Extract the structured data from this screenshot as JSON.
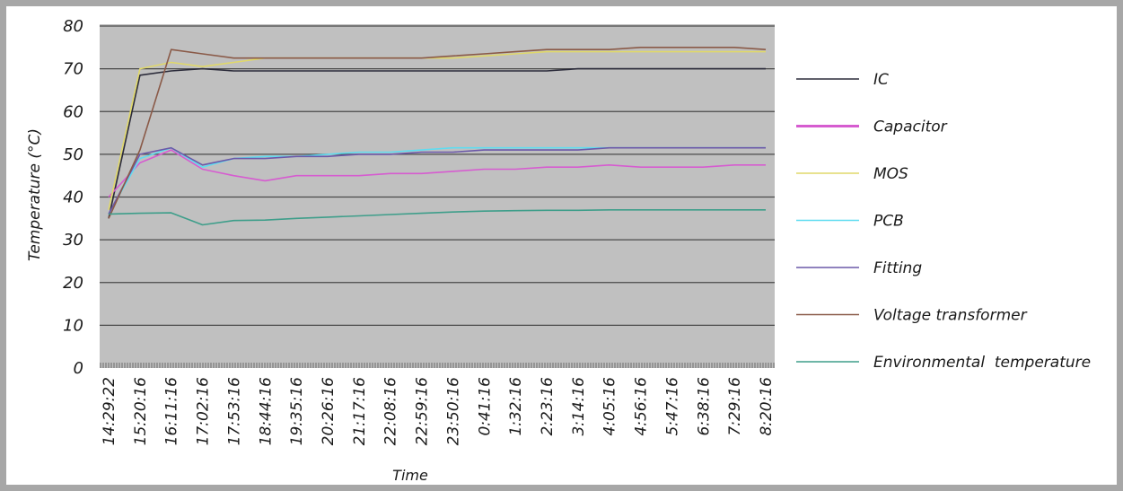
{
  "chart_data": {
    "type": "line",
    "title": "",
    "xlabel": "Time",
    "ylabel": "Temperature (°C)",
    "ylim": [
      0,
      80
    ],
    "yticks": [
      0,
      10,
      20,
      30,
      40,
      50,
      60,
      70,
      80
    ],
    "grid": true,
    "legend_position": "right",
    "x": [
      "14:29:22",
      "15:20:16",
      "16:11:16",
      "17:02:16",
      "17:53:16",
      "18:44:16",
      "19:35:16",
      "20:26:16",
      "21:17:16",
      "22:08:16",
      "22:59:16",
      "23:50:16",
      "0:41:16",
      "1:32:16",
      "2:23:16",
      "3:14:16",
      "4:05:16",
      "4:56:16",
      "5:47:16",
      "6:38:16",
      "7:29:16",
      "8:20:16"
    ],
    "series": [
      {
        "name": "IC",
        "color": "#2b2b3a",
        "values": [
          35,
          68.5,
          69.5,
          70,
          69.5,
          69.5,
          69.5,
          69.5,
          69.5,
          69.5,
          69.5,
          69.5,
          69.5,
          69.5,
          69.5,
          70,
          70,
          70,
          70,
          70,
          70,
          70
        ]
      },
      {
        "name": "Capacitor",
        "color": "#d65cd0",
        "values": [
          40,
          48,
          51,
          46.5,
          45,
          43.8,
          45,
          45,
          45,
          45.5,
          45.5,
          46,
          46.5,
          46.5,
          47,
          47,
          47.5,
          47,
          47,
          47,
          47.5,
          47.5
        ]
      },
      {
        "name": "MOS",
        "color": "#e0d86a",
        "values": [
          37,
          70,
          71.5,
          70.5,
          71.5,
          72.5,
          72.5,
          72.5,
          72.5,
          72.5,
          72.5,
          72.5,
          73,
          73.5,
          74,
          74,
          74,
          74,
          74,
          74,
          74,
          74
        ]
      },
      {
        "name": "PCB",
        "color": "#5fdcf0",
        "values": [
          36,
          49,
          51.5,
          47,
          49,
          49.5,
          49.5,
          50,
          50.5,
          50.5,
          51,
          51.5,
          51.5,
          51.5,
          51.5,
          51.5,
          51.5,
          51.5,
          51.5,
          51.5,
          51.5,
          51.5
        ]
      },
      {
        "name": "Fitting",
        "color": "#6c58a8",
        "values": [
          36,
          50,
          51.5,
          47.5,
          49,
          49,
          49.5,
          49.5,
          50,
          50,
          50.5,
          50.5,
          51,
          51,
          51,
          51,
          51.5,
          51.5,
          51.5,
          51.5,
          51.5,
          51.5
        ]
      },
      {
        "name": "Voltage transformer",
        "color": "#8a5a48",
        "values": [
          35,
          51,
          74.5,
          73.5,
          72.5,
          72.5,
          72.5,
          72.5,
          72.5,
          72.5,
          72.5,
          73,
          73.5,
          74,
          74.5,
          74.5,
          74.5,
          75,
          75,
          75,
          75,
          74.5
        ]
      },
      {
        "name": "Environmental  temperature",
        "color": "#3e9e8a",
        "values": [
          36,
          36.2,
          36.3,
          33.5,
          34.5,
          34.6,
          35,
          35.3,
          35.6,
          35.9,
          36.2,
          36.5,
          36.7,
          36.8,
          36.9,
          36.9,
          37,
          37,
          37,
          37,
          37,
          37
        ]
      }
    ]
  }
}
